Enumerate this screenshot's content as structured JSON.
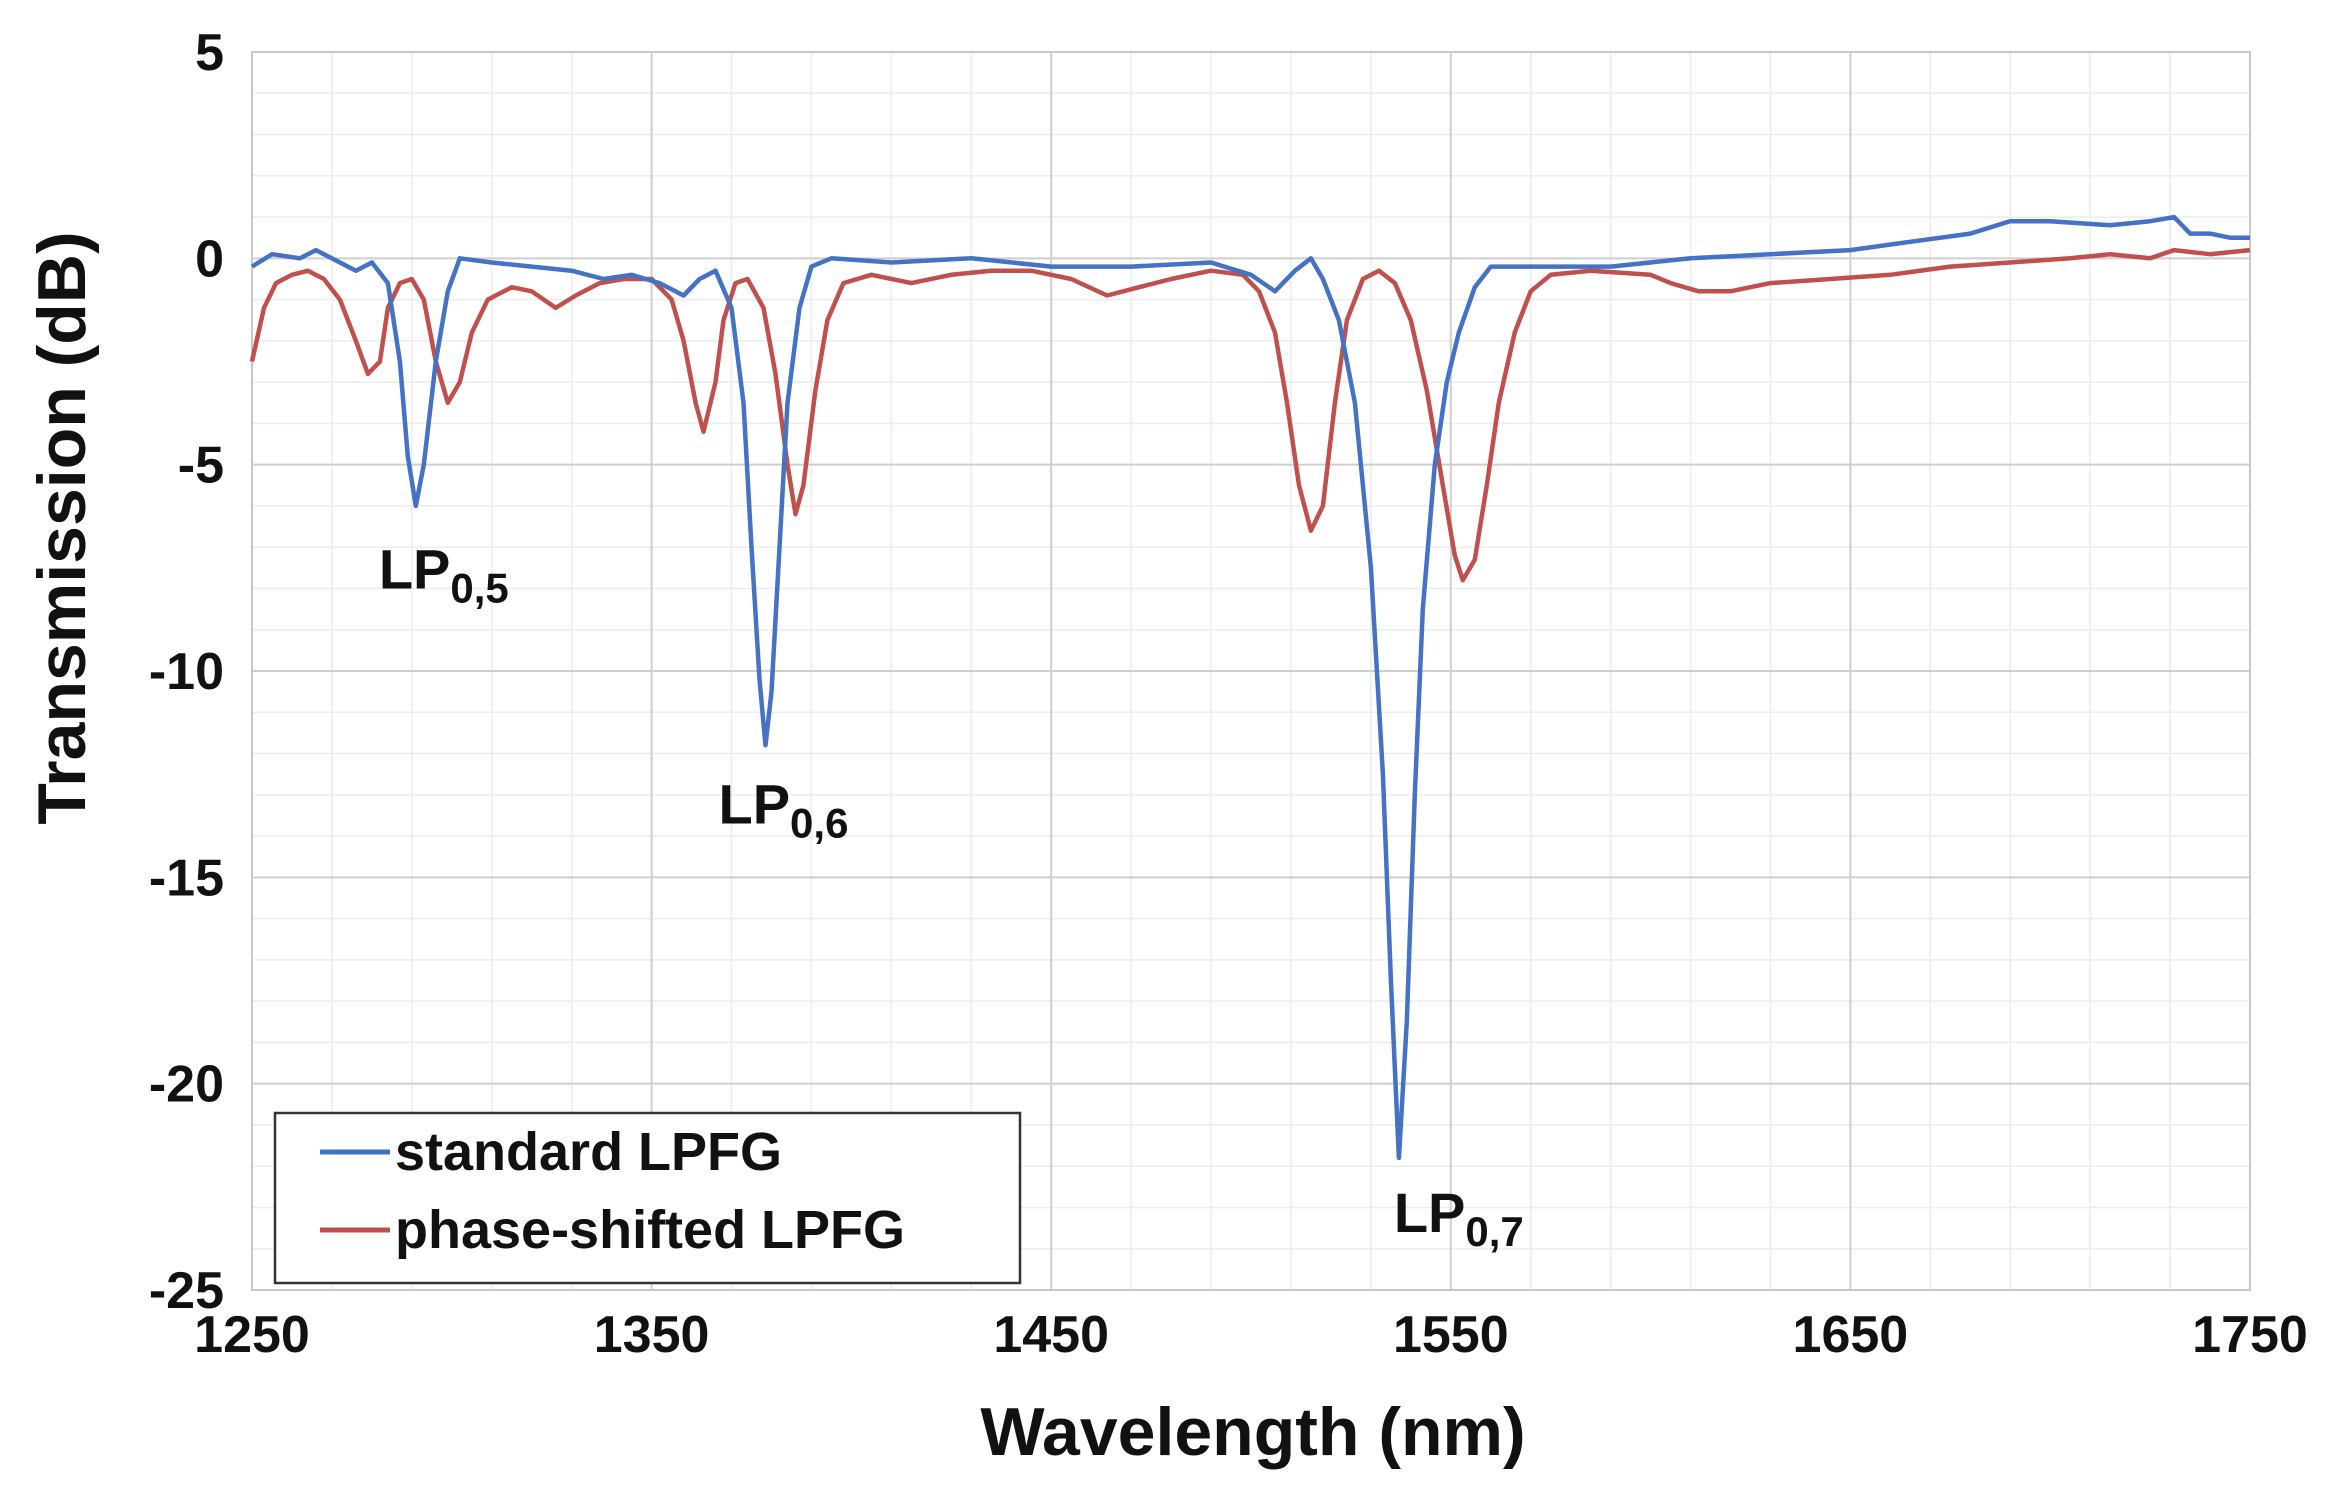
{
  "chart_data": {
    "type": "line",
    "title": "",
    "xlabel": "Wavelength (nm)",
    "ylabel": "Transmission (dB)",
    "xlim": [
      1250,
      1750
    ],
    "ylim": [
      -25,
      5
    ],
    "x_ticks": [
      1250,
      1350,
      1450,
      1550,
      1650,
      1750
    ],
    "y_ticks": [
      5,
      0,
      -5,
      -10,
      -15,
      -20,
      -25
    ],
    "x_tick_labels": [
      "1250",
      "1350",
      "1450",
      "1550",
      "1650",
      "1750"
    ],
    "y_tick_labels": [
      "5",
      "0",
      "-5",
      "-10",
      "-15",
      "-20",
      "-25"
    ],
    "grid": true,
    "legend_position": "bottom-left",
    "series": [
      {
        "name": "standard LPFG",
        "color": "#4472c4",
        "points": [
          [
            1250,
            -0.2
          ],
          [
            1255,
            0.1
          ],
          [
            1262,
            0.0
          ],
          [
            1266,
            0.2
          ],
          [
            1272,
            -0.1
          ],
          [
            1276,
            -0.3
          ],
          [
            1280,
            -0.1
          ],
          [
            1284,
            -0.6
          ],
          [
            1287,
            -2.5
          ],
          [
            1289,
            -4.8
          ],
          [
            1291,
            -6.0
          ],
          [
            1293,
            -5.0
          ],
          [
            1296,
            -2.5
          ],
          [
            1299,
            -0.8
          ],
          [
            1302,
            0.0
          ],
          [
            1310,
            -0.1
          ],
          [
            1320,
            -0.2
          ],
          [
            1330,
            -0.3
          ],
          [
            1338,
            -0.5
          ],
          [
            1345,
            -0.4
          ],
          [
            1352,
            -0.6
          ],
          [
            1358,
            -0.9
          ],
          [
            1362,
            -0.5
          ],
          [
            1366,
            -0.3
          ],
          [
            1370,
            -1.2
          ],
          [
            1373,
            -3.5
          ],
          [
            1375,
            -7.0
          ],
          [
            1377,
            -10.2
          ],
          [
            1378.5,
            -11.8
          ],
          [
            1380,
            -10.5
          ],
          [
            1382,
            -7.0
          ],
          [
            1384,
            -3.5
          ],
          [
            1387,
            -1.2
          ],
          [
            1390,
            -0.2
          ],
          [
            1395,
            0.0
          ],
          [
            1410,
            -0.1
          ],
          [
            1430,
            0.0
          ],
          [
            1450,
            -0.2
          ],
          [
            1470,
            -0.2
          ],
          [
            1490,
            -0.1
          ],
          [
            1500,
            -0.4
          ],
          [
            1506,
            -0.8
          ],
          [
            1511,
            -0.3
          ],
          [
            1515,
            0.0
          ],
          [
            1518,
            -0.5
          ],
          [
            1522,
            -1.5
          ],
          [
            1526,
            -3.5
          ],
          [
            1530,
            -7.5
          ],
          [
            1533,
            -12.5
          ],
          [
            1535,
            -17.5
          ],
          [
            1537,
            -21.8
          ],
          [
            1539,
            -18.5
          ],
          [
            1541,
            -13.0
          ],
          [
            1543,
            -8.5
          ],
          [
            1546,
            -5.0
          ],
          [
            1549,
            -3.0
          ],
          [
            1552,
            -1.8
          ],
          [
            1556,
            -0.7
          ],
          [
            1560,
            -0.2
          ],
          [
            1570,
            -0.2
          ],
          [
            1590,
            -0.2
          ],
          [
            1610,
            0.0
          ],
          [
            1630,
            0.1
          ],
          [
            1650,
            0.2
          ],
          [
            1665,
            0.4
          ],
          [
            1680,
            0.6
          ],
          [
            1690,
            0.9
          ],
          [
            1700,
            0.9
          ],
          [
            1715,
            0.8
          ],
          [
            1725,
            0.9
          ],
          [
            1731,
            1.0
          ],
          [
            1735,
            0.6
          ],
          [
            1740,
            0.6
          ],
          [
            1745,
            0.5
          ],
          [
            1750,
            0.5
          ]
        ]
      },
      {
        "name": "phase-shifted LPFG",
        "color": "#c0504d",
        "points": [
          [
            1250,
            -2.5
          ],
          [
            1253,
            -1.2
          ],
          [
            1256,
            -0.6
          ],
          [
            1260,
            -0.4
          ],
          [
            1264,
            -0.3
          ],
          [
            1268,
            -0.5
          ],
          [
            1272,
            -1.0
          ],
          [
            1276,
            -2.0
          ],
          [
            1279,
            -2.8
          ],
          [
            1282,
            -2.5
          ],
          [
            1284,
            -1.2
          ],
          [
            1287,
            -0.6
          ],
          [
            1290,
            -0.5
          ],
          [
            1293,
            -1.0
          ],
          [
            1296,
            -2.5
          ],
          [
            1299,
            -3.5
          ],
          [
            1302,
            -3.0
          ],
          [
            1305,
            -1.8
          ],
          [
            1309,
            -1.0
          ],
          [
            1315,
            -0.7
          ],
          [
            1320,
            -0.8
          ],
          [
            1326,
            -1.2
          ],
          [
            1331,
            -0.9
          ],
          [
            1337,
            -0.6
          ],
          [
            1343,
            -0.5
          ],
          [
            1350,
            -0.5
          ],
          [
            1355,
            -1.0
          ],
          [
            1358,
            -2.0
          ],
          [
            1361,
            -3.5
          ],
          [
            1363,
            -4.2
          ],
          [
            1366,
            -3.0
          ],
          [
            1368,
            -1.5
          ],
          [
            1371,
            -0.6
          ],
          [
            1374,
            -0.5
          ],
          [
            1378,
            -1.2
          ],
          [
            1381,
            -2.8
          ],
          [
            1384,
            -5.0
          ],
          [
            1386,
            -6.2
          ],
          [
            1388,
            -5.5
          ],
          [
            1391,
            -3.2
          ],
          [
            1394,
            -1.5
          ],
          [
            1398,
            -0.6
          ],
          [
            1405,
            -0.4
          ],
          [
            1415,
            -0.6
          ],
          [
            1425,
            -0.4
          ],
          [
            1435,
            -0.3
          ],
          [
            1445,
            -0.3
          ],
          [
            1455,
            -0.5
          ],
          [
            1464,
            -0.9
          ],
          [
            1472,
            -0.7
          ],
          [
            1480,
            -0.5
          ],
          [
            1490,
            -0.3
          ],
          [
            1498,
            -0.4
          ],
          [
            1502,
            -0.8
          ],
          [
            1506,
            -1.8
          ],
          [
            1509,
            -3.5
          ],
          [
            1512,
            -5.5
          ],
          [
            1515,
            -6.6
          ],
          [
            1518,
            -6.0
          ],
          [
            1521,
            -3.5
          ],
          [
            1524,
            -1.5
          ],
          [
            1528,
            -0.5
          ],
          [
            1532,
            -0.3
          ],
          [
            1536,
            -0.6
          ],
          [
            1540,
            -1.5
          ],
          [
            1544,
            -3.2
          ],
          [
            1548,
            -5.5
          ],
          [
            1551,
            -7.2
          ],
          [
            1553,
            -7.8
          ],
          [
            1556,
            -7.3
          ],
          [
            1559,
            -5.5
          ],
          [
            1562,
            -3.5
          ],
          [
            1566,
            -1.8
          ],
          [
            1570,
            -0.8
          ],
          [
            1575,
            -0.4
          ],
          [
            1585,
            -0.3
          ],
          [
            1600,
            -0.4
          ],
          [
            1605,
            -0.6
          ],
          [
            1612,
            -0.8
          ],
          [
            1620,
            -0.8
          ],
          [
            1630,
            -0.6
          ],
          [
            1645,
            -0.5
          ],
          [
            1660,
            -0.4
          ],
          [
            1675,
            -0.2
          ],
          [
            1690,
            -0.1
          ],
          [
            1705,
            0.0
          ],
          [
            1715,
            0.1
          ],
          [
            1725,
            0.0
          ],
          [
            1731,
            0.2
          ],
          [
            1740,
            0.1
          ],
          [
            1750,
            0.2
          ]
        ]
      }
    ],
    "annotations": [
      {
        "base": "LP",
        "sub": "0,5",
        "x": 1298,
        "y": -8.0
      },
      {
        "base": "LP",
        "sub": "0,6",
        "x": 1383,
        "y": -13.7
      },
      {
        "base": "LP",
        "sub": "0,7",
        "x": 1552,
        "y": -23.6
      }
    ]
  }
}
